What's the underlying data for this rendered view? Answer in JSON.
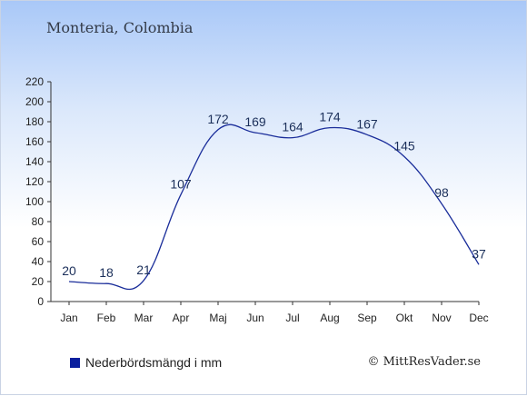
{
  "header": {
    "location": "Monteria, Colombia"
  },
  "legend": {
    "label": "Nederbördsmängd i mm",
    "color": "#0a1f9e"
  },
  "credit": {
    "text": "© MittResVader.se"
  },
  "colors": {
    "line": "#1a2d9a",
    "axis": "#333333",
    "label": "#1b2f5a"
  },
  "chart_data": {
    "type": "line",
    "categories": [
      "Jan",
      "Feb",
      "Mar",
      "Apr",
      "Maj",
      "Jun",
      "Jul",
      "Aug",
      "Sep",
      "Okt",
      "Nov",
      "Dec"
    ],
    "series": [
      {
        "name": "Nederbördsmängd i mm",
        "values": [
          20,
          18,
          21,
          107,
          172,
          169,
          164,
          174,
          167,
          145,
          98,
          37
        ]
      }
    ],
    "ylim": [
      0,
      220
    ],
    "yticks": [
      0,
      20,
      40,
      60,
      80,
      100,
      120,
      140,
      160,
      180,
      200,
      220
    ],
    "grid": false,
    "legend_position": "bottom-left"
  }
}
